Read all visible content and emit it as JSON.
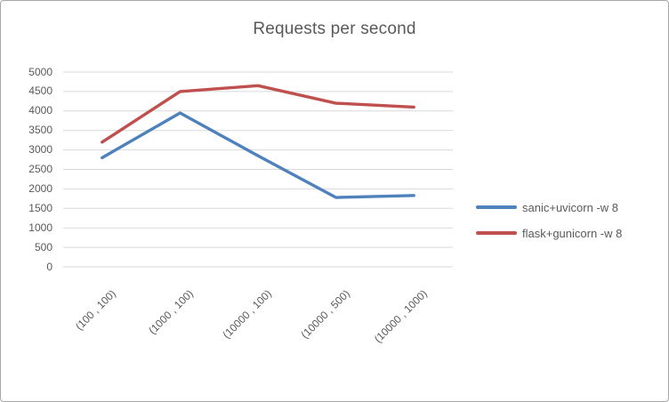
{
  "window": {
    "background": "#ffffff",
    "border_color": "#a6a6a6"
  },
  "chart_data": {
    "type": "line",
    "title": "Requests per second",
    "categories": [
      "(100 , 100)",
      "(1000 , 100)",
      "(10000 , 100)",
      "(10000 , 500)",
      "(10000 , 1000)"
    ],
    "series": [
      {
        "name": "sanic+uvicorn -w 8",
        "color": "#4F81BD",
        "values": [
          2800,
          3950,
          2850,
          1780,
          1830
        ]
      },
      {
        "name": "flask+gunicorn -w 8",
        "color": "#C0504D",
        "values": [
          3200,
          4500,
          4650,
          4200,
          4100
        ]
      }
    ],
    "y_axis": {
      "min": 0,
      "max": 5000,
      "step": 500,
      "ticks": [
        0,
        500,
        1000,
        1500,
        2000,
        2500,
        3000,
        3500,
        4000,
        4500,
        5000
      ]
    },
    "x_axis_label_rotation_deg": -45,
    "grid": true,
    "legend_position": "right",
    "text_color": "#595959",
    "gridline_color": "#D9D9D9",
    "line_width": 3.4
  }
}
